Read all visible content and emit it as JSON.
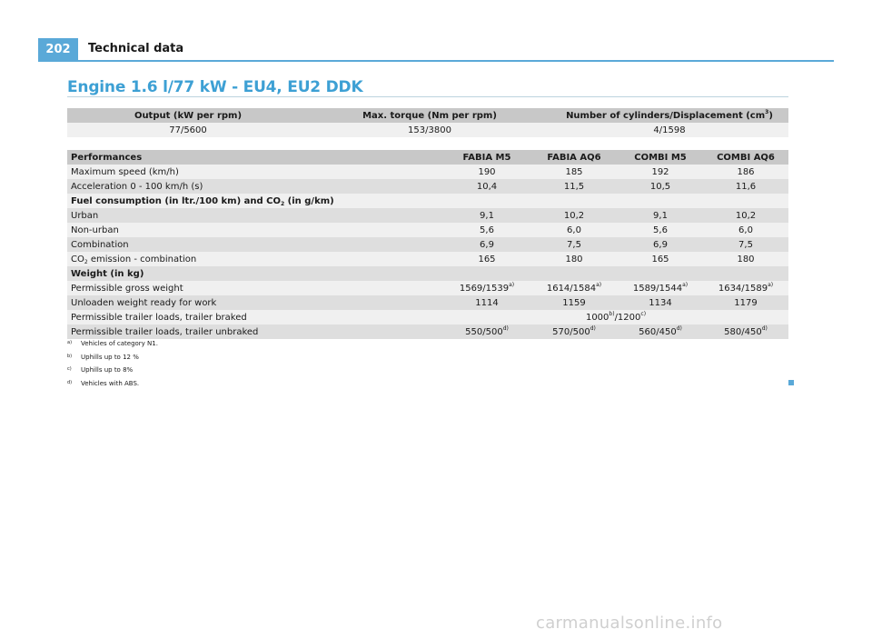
{
  "header": {
    "page_number": "202",
    "section": "Technical data"
  },
  "title": "Engine 1.6 l/77 kW - EU4, EU2 DDK",
  "engine_table": {
    "headers": {
      "output": "Output (kW per rpm)",
      "torque": "Max. torque (Nm per rpm)",
      "cyl_pre": "Number of cylinders/Displacement (cm",
      "cyl_sup": "3",
      "cyl_post": ")"
    },
    "values": {
      "output": "77/5600",
      "torque": "153/3800",
      "cyl": "4/1598"
    }
  },
  "perf_table": {
    "columns": {
      "label": "Performances",
      "c1": "FABIA M5",
      "c2": "FABIA AQ6",
      "c3": "COMBI M5",
      "c4": "COMBI AQ6"
    },
    "max_speed": {
      "label": "Maximum speed (km/h)",
      "v": [
        "190",
        "185",
        "192",
        "186"
      ]
    },
    "accel": {
      "label": "Acceleration 0 - 100 km/h (s)",
      "v": [
        "10,4",
        "11,5",
        "10,5",
        "11,6"
      ]
    },
    "fuel_group": {
      "pre": "Fuel consumption (in ltr./100 km) and CO",
      "sub": "2",
      "post": " (in g/km)"
    },
    "urban": {
      "label": "Urban",
      "v": [
        "9,1",
        "10,2",
        "9,1",
        "10,2"
      ]
    },
    "non_urban": {
      "label": "Non-urban",
      "v": [
        "5,6",
        "6,0",
        "5,6",
        "6,0"
      ]
    },
    "combination": {
      "label": "Combination",
      "v": [
        "6,9",
        "7,5",
        "6,9",
        "7,5"
      ]
    },
    "co2": {
      "pre": "CO",
      "sub": "2",
      "post": " emission - combination",
      "v": [
        "165",
        "180",
        "165",
        "180"
      ]
    },
    "weight_group": {
      "label": "Weight (in kg)"
    },
    "gross": {
      "label": "Permissible gross weight",
      "v": [
        "1569/1539",
        "1614/1584",
        "1589/1544",
        "1634/1589"
      ],
      "sup": "a)"
    },
    "unladen": {
      "label": "Unloaden weight ready for work",
      "v": [
        "1114",
        "1159",
        "1134",
        "1179"
      ]
    },
    "braked": {
      "label": "Permissible trailer loads, trailer braked",
      "v1": "1000",
      "s1": "b)",
      "v2": "/1200",
      "s2": "c)"
    },
    "unbraked": {
      "label": "Permissible trailer loads, trailer unbraked",
      "v": [
        "550/500",
        "570/500",
        "560/450",
        "580/450"
      ],
      "sup": "d)"
    }
  },
  "footnotes": [
    {
      "mark": "a)",
      "text": "Vehicles of category N1."
    },
    {
      "mark": "b)",
      "text": "Uphills up to 12 %"
    },
    {
      "mark": "c)",
      "text": "Uphills up to 8%"
    },
    {
      "mark": "d)",
      "text": "Vehicles with ABS."
    }
  ],
  "watermark": "carmanualsonline.info",
  "colors": {
    "accent": "#5aa9d8",
    "title": "#3da0d4",
    "header_row": "#c8c8c8",
    "row_light": "#f0f0f0",
    "row_dark": "#dedede"
  }
}
